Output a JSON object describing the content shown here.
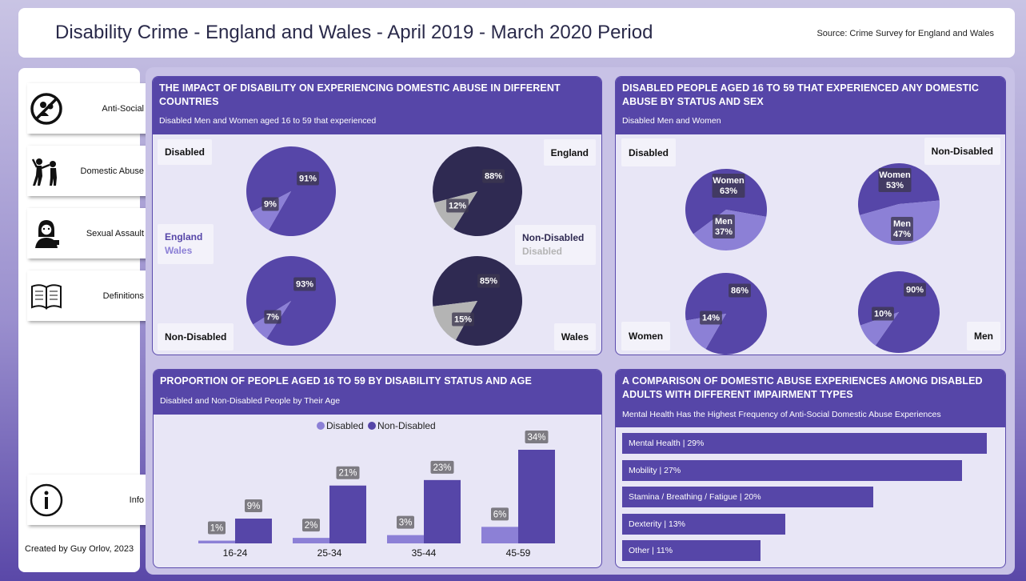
{
  "header": {
    "title": "Disability Crime - England and Wales - April 2019 - March 2020 Period",
    "source": "Source: Crime Survey for England and Wales"
  },
  "sidebar": {
    "items": [
      {
        "label": "Anti-Social",
        "icon": "no-people-icon"
      },
      {
        "label": "Domestic Abuse",
        "icon": "fight-icon"
      },
      {
        "label": "Sexual Assault",
        "icon": "victim-icon"
      },
      {
        "label": "Definitions",
        "icon": "book-icon"
      }
    ],
    "info": {
      "label": "Info",
      "icon": "info-icon"
    },
    "credit": "Created by Guy Orlov, 2023"
  },
  "colors": {
    "england": "#5646a8",
    "wales": "#8c80d6",
    "non_disabled": "#2f2a52",
    "disabled_gray": "#b4b4b4",
    "women": "#5646a8",
    "men": "#8c80d6"
  },
  "panel1": {
    "title": "THE IMPACT OF DISABILITY ON EXPERIENCING DOMESTIC ABUSE IN DIFFERENT COUNTRIES",
    "subtitle": "Disabled Men and Women aged 16 to 59 that experienced",
    "cards": {
      "disabled": "Disabled",
      "non_disabled": "Non-Disabled",
      "england": "England",
      "wales": "Wales"
    },
    "legend_left": {
      "england": "England",
      "wales": "Wales"
    },
    "legend_right": {
      "non_disabled": "Non-Disabled",
      "disabled": "Disabled"
    }
  },
  "panel2": {
    "title": "DISABLED PEOPLE AGED 16 TO 59 THAT EXPERIENCED ANY DOMESTIC ABUSE BY STATUS AND SEX",
    "subtitle": "Disabled Men and Women",
    "cards": {
      "disabled": "Disabled",
      "non_disabled": "Non-Disabled",
      "women": "Women",
      "men": "Men"
    }
  },
  "panel3": {
    "title": "PROPORTION OF PEOPLE AGED 16 TO 59 BY DISABILITY STATUS AND AGE",
    "subtitle": "Disabled and Non-Disabled People by Their Age",
    "legend": [
      "Disabled",
      "Non-Disabled"
    ]
  },
  "panel4": {
    "title": "A COMPARISON OF DOMESTIC ABUSE EXPERIENCES AMONG DISABLED ADULTS WITH DIFFERENT IMPAIRMENT TYPES",
    "subtitle": "Mental Health Has the Highest Frequency of Anti-Social Domestic Abuse Experiences"
  },
  "chart_data": [
    {
      "type": "pie",
      "group": "Disabled - England",
      "slices": [
        {
          "label": "91%",
          "value": 91,
          "color": "#5646a8"
        },
        {
          "label": "9%",
          "value": 9,
          "color": "#8c80d6"
        }
      ]
    },
    {
      "type": "pie",
      "group": "England - Non-Disabled vs Disabled",
      "slices": [
        {
          "label": "88%",
          "value": 88,
          "color": "#2f2a52"
        },
        {
          "label": "12%",
          "value": 12,
          "color": "#b4b4b4"
        }
      ]
    },
    {
      "type": "pie",
      "group": "Non-Disabled - England",
      "slices": [
        {
          "label": "93%",
          "value": 93,
          "color": "#5646a8"
        },
        {
          "label": "7%",
          "value": 7,
          "color": "#8c80d6"
        }
      ]
    },
    {
      "type": "pie",
      "group": "Wales - Non-Disabled vs Disabled",
      "slices": [
        {
          "label": "85%",
          "value": 85,
          "color": "#2f2a52"
        },
        {
          "label": "15%",
          "value": 15,
          "color": "#b4b4b4"
        }
      ]
    },
    {
      "type": "pie",
      "group": "Disabled - Women vs Men",
      "slices": [
        {
          "label": "Women\n63%",
          "value": 63,
          "color": "#5646a8"
        },
        {
          "label": "Men\n37%",
          "value": 37,
          "color": "#8c80d6"
        }
      ]
    },
    {
      "type": "pie",
      "group": "Non-Disabled - Women vs Men",
      "slices": [
        {
          "label": "Women\n53%",
          "value": 53,
          "color": "#5646a8"
        },
        {
          "label": "Men\n47%",
          "value": 47,
          "color": "#8c80d6"
        }
      ]
    },
    {
      "type": "pie",
      "group": "Women",
      "slices": [
        {
          "label": "86%",
          "value": 86,
          "color": "#5646a8"
        },
        {
          "label": "14%",
          "value": 14,
          "color": "#8c80d6"
        }
      ]
    },
    {
      "type": "pie",
      "group": "Men",
      "slices": [
        {
          "label": "90%",
          "value": 90,
          "color": "#5646a8"
        },
        {
          "label": "10%",
          "value": 10,
          "color": "#8c80d6"
        }
      ]
    },
    {
      "type": "bar",
      "categories": [
        "16-24",
        "25-34",
        "35-44",
        "45-59"
      ],
      "series": [
        {
          "name": "Disabled",
          "values": [
            1,
            2,
            3,
            6
          ],
          "color": "#8c80d6"
        },
        {
          "name": "Non-Disabled",
          "values": [
            9,
            21,
            23,
            34
          ],
          "color": "#5646a8"
        }
      ],
      "legend": "top-center",
      "ylim": [
        0,
        34
      ]
    },
    {
      "type": "bar",
      "orientation": "horizontal",
      "categories": [
        "Mental Health",
        "Mobility",
        "Stamina / Breathing / Fatigue",
        "Dexterity",
        "Other"
      ],
      "values": [
        29,
        27,
        20,
        13,
        11
      ],
      "labels": [
        "Mental Health | 29%",
        "Mobility | 27%",
        "Stamina / Breathing / Fatigue | 20%",
        "Dexterity | 13%",
        "Other | 11%"
      ],
      "xlim": [
        0,
        29
      ]
    }
  ]
}
